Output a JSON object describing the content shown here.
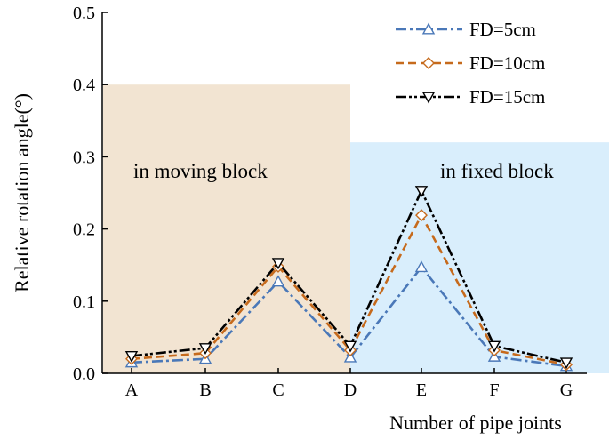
{
  "chart_data": {
    "type": "line",
    "categories": [
      "A",
      "B",
      "C",
      "D",
      "E",
      "F",
      "G"
    ],
    "xlabel": "Number of pipe joints",
    "ylabel": "Relative rotation angle(°)",
    "ylim": [
      0,
      0.5
    ],
    "yticks": [
      "0.0",
      "0.1",
      "0.2",
      "0.3",
      "0.4",
      "0.5"
    ],
    "grid": false,
    "legend_position": "top-right",
    "regions": [
      {
        "label": "in moving block",
        "x_from": "A",
        "x_to": "D",
        "y_top": 0.4,
        "color": "#f2e4d2"
      },
      {
        "label": "in fixed block",
        "x_from": "D",
        "x_to": "G",
        "y_top": 0.32,
        "color": "#d9eefc"
      }
    ],
    "series": [
      {
        "name": "FD=5cm",
        "marker": "triangle-up",
        "color": "#4a78b8",
        "dash": "dash-dot",
        "values": [
          0.015,
          0.02,
          0.127,
          0.022,
          0.147,
          0.023,
          0.01
        ]
      },
      {
        "name": "FD=10cm",
        "marker": "diamond",
        "color": "#c66a1c",
        "dash": "dashed",
        "values": [
          0.02,
          0.028,
          0.148,
          0.032,
          0.219,
          0.032,
          0.012
        ]
      },
      {
        "name": "FD=15cm",
        "marker": "triangle-down",
        "color": "#000000",
        "dash": "dash-dot-dot",
        "values": [
          0.024,
          0.035,
          0.153,
          0.038,
          0.253,
          0.038,
          0.015
        ]
      }
    ]
  }
}
